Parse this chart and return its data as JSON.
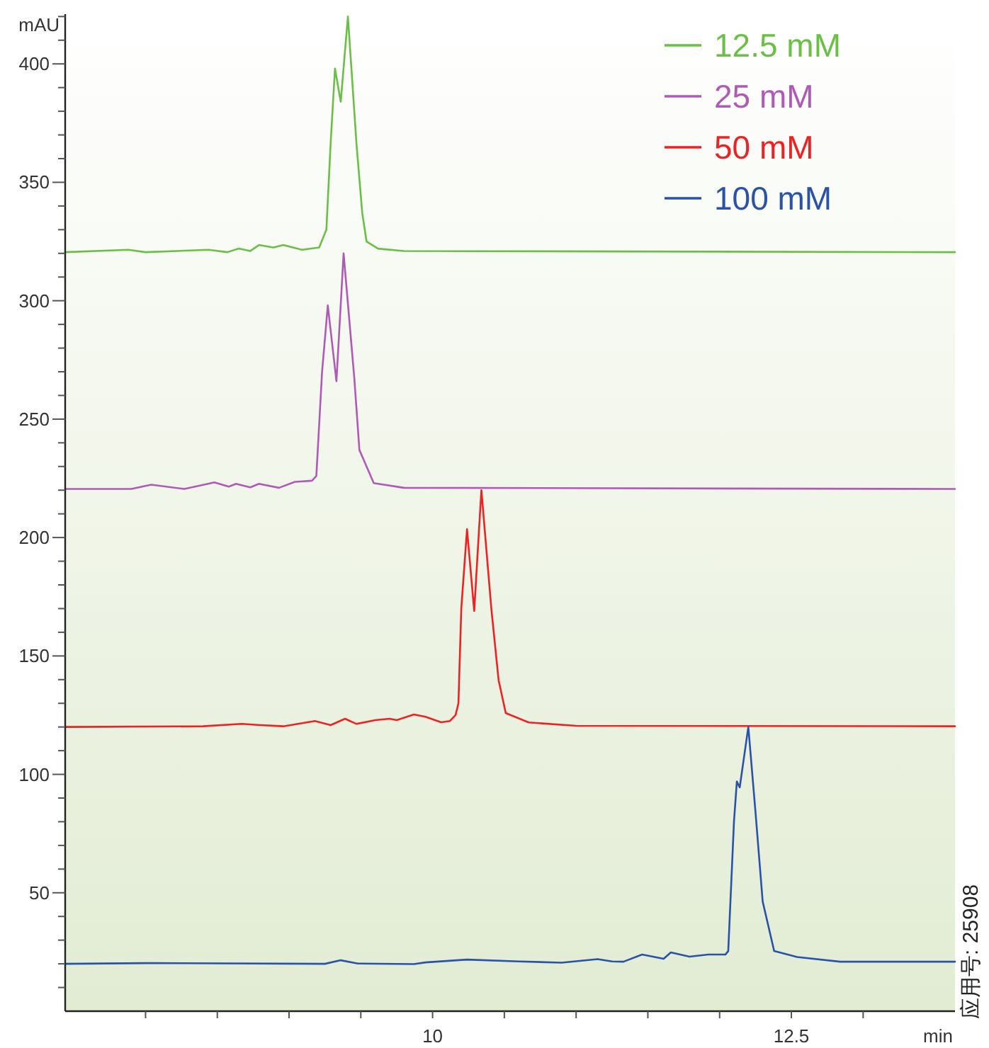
{
  "chart_data": {
    "type": "line",
    "ylabel": "mAU",
    "xlabel": "min",
    "xlim": [
      7.44,
      13.64
    ],
    "ylim": [
      0,
      421
    ],
    "xticks": [
      {
        "value": 8,
        "label": null
      },
      {
        "value": 8.5,
        "label": null
      },
      {
        "value": 9,
        "label": null
      },
      {
        "value": 9.5,
        "label": null
      },
      10,
      {
        "value": 10.5,
        "label": null
      },
      {
        "value": 11,
        "label": null
      },
      {
        "value": 11.5,
        "label": null
      },
      {
        "value": 12,
        "label": null
      },
      12.5,
      {
        "value": 13,
        "label": null
      }
    ],
    "yticks": [
      {
        "value": 10,
        "label": null
      },
      {
        "value": 20,
        "label": null
      },
      {
        "value": 30,
        "label": null
      },
      {
        "value": 40,
        "label": null
      },
      50,
      {
        "value": 60,
        "label": null
      },
      {
        "value": 70,
        "label": null
      },
      {
        "value": 80,
        "label": null
      },
      {
        "value": 90,
        "label": null
      },
      100,
      {
        "value": 110,
        "label": null
      },
      {
        "value": 120,
        "label": null
      },
      {
        "value": 130,
        "label": null
      },
      {
        "value": 140,
        "label": null
      },
      150,
      {
        "value": 160,
        "label": null
      },
      {
        "value": 170,
        "label": null
      },
      {
        "value": 180,
        "label": null
      },
      {
        "value": 190,
        "label": null
      },
      200,
      {
        "value": 210,
        "label": null
      },
      {
        "value": 220,
        "label": null
      },
      {
        "value": 230,
        "label": null
      },
      {
        "value": 240,
        "label": null
      },
      250,
      {
        "value": 260,
        "label": null
      },
      {
        "value": 270,
        "label": null
      },
      {
        "value": 280,
        "label": null
      },
      {
        "value": 290,
        "label": null
      },
      300,
      {
        "value": 310,
        "label": null
      },
      {
        "value": 320,
        "label": null
      },
      {
        "value": 330,
        "label": null
      },
      {
        "value": 340,
        "label": null
      },
      350,
      {
        "value": 360,
        "label": null
      },
      {
        "value": 370,
        "label": null
      },
      {
        "value": 380,
        "label": null
      },
      {
        "value": 390,
        "label": null
      },
      400,
      {
        "value": 410,
        "label": null
      },
      {
        "value": 420,
        "label": null
      }
    ],
    "grid": false,
    "legend": "top right",
    "marker": "none",
    "line_style": "solid",
    "annotations": [
      "应用号: 25908"
    ],
    "series": [
      {
        "name": "12.5 mM",
        "color": "#6abf45",
        "x": [
          7.44,
          7.88,
          8.0,
          8.44,
          8.57,
          8.65,
          8.73,
          8.79,
          8.89,
          8.96,
          9.09,
          9.21,
          9.26,
          9.29,
          9.32,
          9.36,
          9.41,
          9.47,
          9.51,
          9.54,
          9.62,
          9.8,
          13.64
        ],
        "values": [
          320.5,
          321.5,
          320.5,
          321.5,
          320.5,
          322,
          321,
          323.5,
          322.5,
          323.5,
          321.5,
          322.5,
          330,
          367,
          398,
          384,
          420,
          366,
          337,
          325,
          322,
          321,
          320.5
        ]
      },
      {
        "name": "25 mM",
        "color": "#b05ab8",
        "x": [
          7.44,
          7.9,
          8.04,
          8.27,
          8.48,
          8.58,
          8.63,
          8.73,
          8.79,
          8.93,
          9.04,
          9.16,
          9.19,
          9.23,
          9.27,
          9.33,
          9.38,
          9.455,
          9.49,
          9.59,
          9.8,
          13.64
        ],
        "values": [
          220.5,
          220.5,
          222.3,
          220.5,
          223.3,
          221.5,
          222.7,
          221.2,
          222.7,
          221,
          223.5,
          224,
          226,
          270,
          298,
          266,
          320,
          267,
          237,
          223,
          221,
          220.5
        ]
      },
      {
        "name": "50 mM",
        "color": "#ee2222",
        "x": [
          7.44,
          8.4,
          8.67,
          8.8,
          8.96,
          9.18,
          9.29,
          9.39,
          9.47,
          9.6,
          9.7,
          9.75,
          9.87,
          9.95,
          10.06,
          10.12,
          10.16,
          10.18,
          10.2,
          10.24,
          10.29,
          10.34,
          10.41,
          10.46,
          10.51,
          10.67,
          11.0,
          13.64
        ],
        "values": [
          120,
          120.3,
          121.3,
          120.8,
          120.3,
          122.5,
          120.8,
          123.5,
          121.3,
          122.9,
          123.5,
          122.9,
          125.3,
          124.3,
          122,
          122.5,
          125,
          130,
          170,
          203.5,
          169,
          220,
          169.6,
          139.8,
          125.9,
          121.9,
          120.5,
          120.3
        ]
      },
      {
        "name": "100 mM",
        "color": "#2a52a8",
        "x": [
          7.44,
          8.01,
          9.25,
          9.36,
          9.48,
          9.87,
          9.95,
          10.24,
          10.6,
          10.9,
          11.15,
          11.25,
          11.33,
          11.46,
          11.61,
          11.66,
          11.79,
          11.92,
          12.04,
          12.06,
          12.1,
          12.12,
          12.14,
          12.2,
          12.25,
          12.3,
          12.38,
          12.54,
          12.84,
          13.64
        ],
        "values": [
          20,
          20.3,
          20,
          21.5,
          20.1,
          19.9,
          20.6,
          21.8,
          21,
          20.5,
          22,
          21,
          20.9,
          23.9,
          22.1,
          24.8,
          23,
          23.9,
          23.9,
          25.4,
          80,
          97,
          94.5,
          120,
          84,
          46.3,
          25.4,
          22.9,
          20.9,
          20.9
        ]
      }
    ]
  }
}
